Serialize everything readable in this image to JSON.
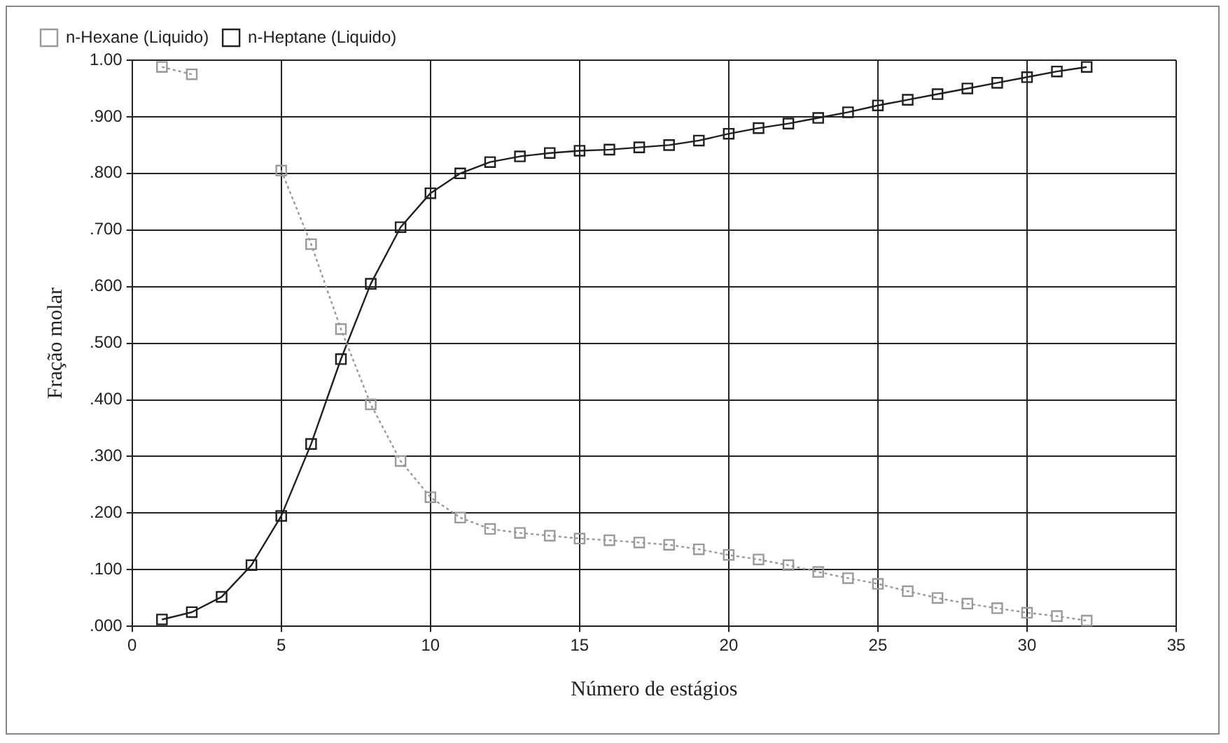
{
  "chart_data": {
    "type": "line",
    "xlabel": "Número de estágios",
    "ylabel": "Fração molar",
    "x": [
      1,
      2,
      3,
      4,
      5,
      6,
      7,
      8,
      9,
      10,
      11,
      12,
      13,
      14,
      15,
      16,
      17,
      18,
      19,
      20,
      21,
      22,
      23,
      24,
      25,
      26,
      27,
      28,
      29,
      30,
      31,
      32
    ],
    "series": [
      {
        "name": "n-Hexane (Liquido)",
        "color": "#9a9a9a",
        "line_style": "dotted",
        "values": [
          0.988,
          0.975,
          null,
          null,
          0.805,
          0.675,
          0.525,
          0.392,
          0.292,
          0.228,
          0.192,
          0.172,
          0.165,
          0.16,
          0.155,
          0.152,
          0.148,
          0.144,
          0.136,
          0.126,
          0.118,
          0.108,
          0.096,
          0.085,
          0.075,
          0.062,
          0.05,
          0.04,
          0.032,
          0.024,
          0.018,
          0.01
        ]
      },
      {
        "name": "n-Heptane (Liquido)",
        "color": "#202020",
        "line_style": "solid",
        "values": [
          0.012,
          0.025,
          0.052,
          0.108,
          0.195,
          0.322,
          0.472,
          0.605,
          0.705,
          0.765,
          0.8,
          0.82,
          0.83,
          0.836,
          0.84,
          0.842,
          0.846,
          0.85,
          0.858,
          0.87,
          0.88,
          0.888,
          0.898,
          0.908,
          0.92,
          0.93,
          0.94,
          0.95,
          0.96,
          0.97,
          0.98,
          0.988
        ]
      }
    ],
    "xlim": [
      0,
      35
    ],
    "xticks": [
      0,
      5,
      10,
      15,
      20,
      25,
      30,
      35
    ],
    "ylim": [
      0,
      1
    ],
    "yticks": [
      {
        "value": 0,
        "label": ".000"
      },
      {
        "value": 0.1,
        "label": ".100"
      },
      {
        "value": 0.2,
        "label": ".200"
      },
      {
        "value": 0.3,
        "label": ".300"
      },
      {
        "value": 0.4,
        "label": ".400"
      },
      {
        "value": 0.5,
        "label": ".500"
      },
      {
        "value": 0.6,
        "label": ".600"
      },
      {
        "value": 0.7,
        "label": ".700"
      },
      {
        "value": 0.8,
        "label": ".800"
      },
      {
        "value": 0.9,
        "label": ".900"
      },
      {
        "value": 1,
        "label": "1.00"
      }
    ],
    "grid": true,
    "legend": "top left",
    "marker": "square"
  }
}
